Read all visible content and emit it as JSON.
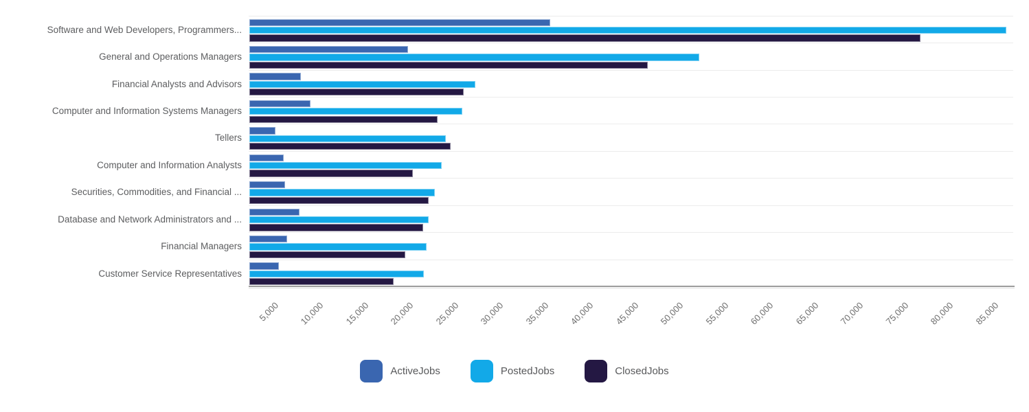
{
  "chart_data": {
    "type": "bar",
    "orientation": "horizontal",
    "title": "",
    "xlabel": "",
    "ylabel": "",
    "xlim": [
      0,
      85500
    ],
    "tick_interval": 5000,
    "x_tick_labels": [
      "5,000",
      "10,000",
      "15,000",
      "20,000",
      "25,000",
      "30,000",
      "35,000",
      "40,000",
      "45,000",
      "50,000",
      "55,000",
      "60,000",
      "65,000",
      "70,000",
      "75,000",
      "80,000",
      "85,000"
    ],
    "grid": "horizontal category separators only, no vertical gridlines",
    "legend_position": "bottom-center",
    "categories": [
      "Software and Web Developers, Programmers...",
      "General and Operations Managers",
      "Financial Analysts and Advisors",
      "Computer and Information Systems Managers",
      "Tellers",
      "Computer and Information Analysts",
      "Securities, Commodities, and Financial ...",
      "Database and Network Administrators and ...",
      "Financial Managers",
      "Customer Service Representatives"
    ],
    "series": [
      {
        "name": "ActiveJobs",
        "color": "#3a66b0",
        "values": [
          33400,
          17600,
          5700,
          6800,
          2900,
          3800,
          4000,
          5600,
          4200,
          3300
        ]
      },
      {
        "name": "PostedJobs",
        "color": "#12a9e8",
        "values": [
          84100,
          50000,
          25100,
          23700,
          21800,
          21400,
          20600,
          19900,
          19700,
          19400
        ]
      },
      {
        "name": "ClosedJobs",
        "color": "#241843",
        "values": [
          74600,
          44300,
          23800,
          20900,
          22400,
          18200,
          19900,
          19300,
          17300,
          16000
        ]
      }
    ]
  },
  "colors": {
    "separator_line": "#ececec",
    "axis_line": "#9c9c9c",
    "category_label_text": "#5c5d5f",
    "tick_label_text": "#6e6e6e",
    "legend_label_text": "#58595b",
    "background": "#ffffff"
  },
  "legend": {
    "items": [
      {
        "label": "ActiveJobs"
      },
      {
        "label": "PostedJobs"
      },
      {
        "label": "ClosedJobs"
      }
    ]
  }
}
